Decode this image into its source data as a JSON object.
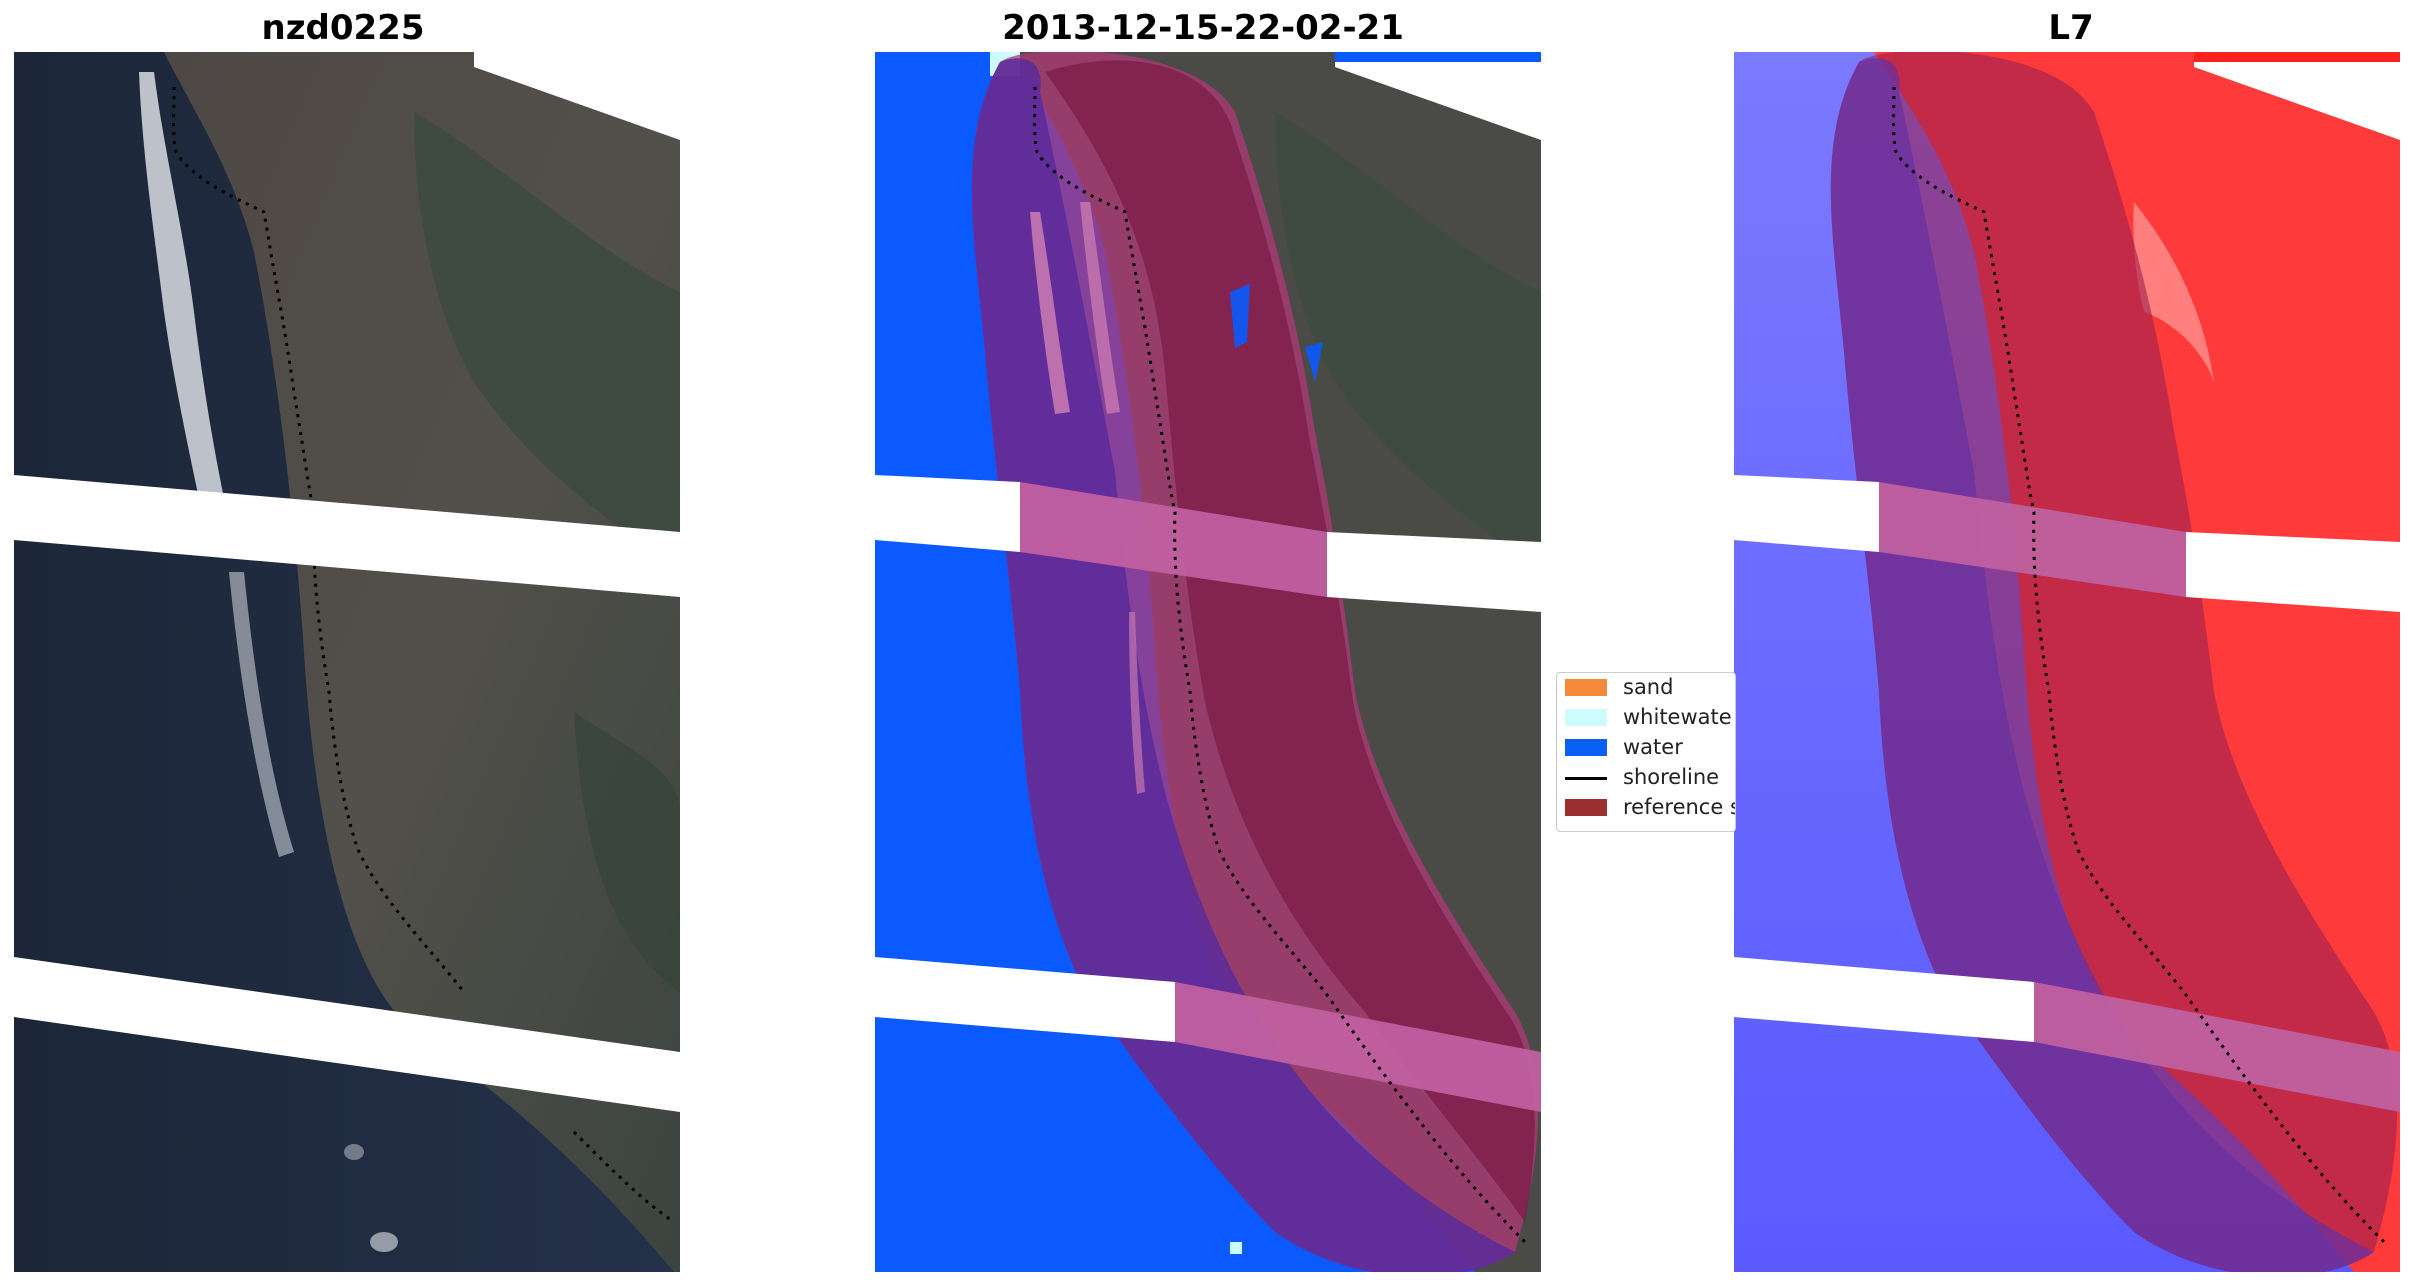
{
  "panels": [
    {
      "title": "nzd0225"
    },
    {
      "title": "2013-12-15-22-02-21"
    },
    {
      "title": "L7"
    }
  ],
  "legend": {
    "items": [
      {
        "label": "sand",
        "kind": "patch",
        "color": "#f48a3a"
      },
      {
        "label": "whitewate",
        "kind": "patch",
        "color": "#ccfcfc"
      },
      {
        "label": "water",
        "kind": "patch",
        "color": "#0a5ff5"
      },
      {
        "label": "shoreline",
        "kind": "line",
        "color": "#000000"
      },
      {
        "label": "reference s",
        "kind": "patch",
        "color": "#9c2f2f"
      }
    ]
  },
  "colors": {
    "water_class": "#0a5aff",
    "reference_buffer": "#c0608f",
    "land_rgb": "#4a4a48",
    "ocean_rgb": "#1f2b40",
    "index_land": "#ff3030",
    "index_water": "#6a6aff"
  }
}
